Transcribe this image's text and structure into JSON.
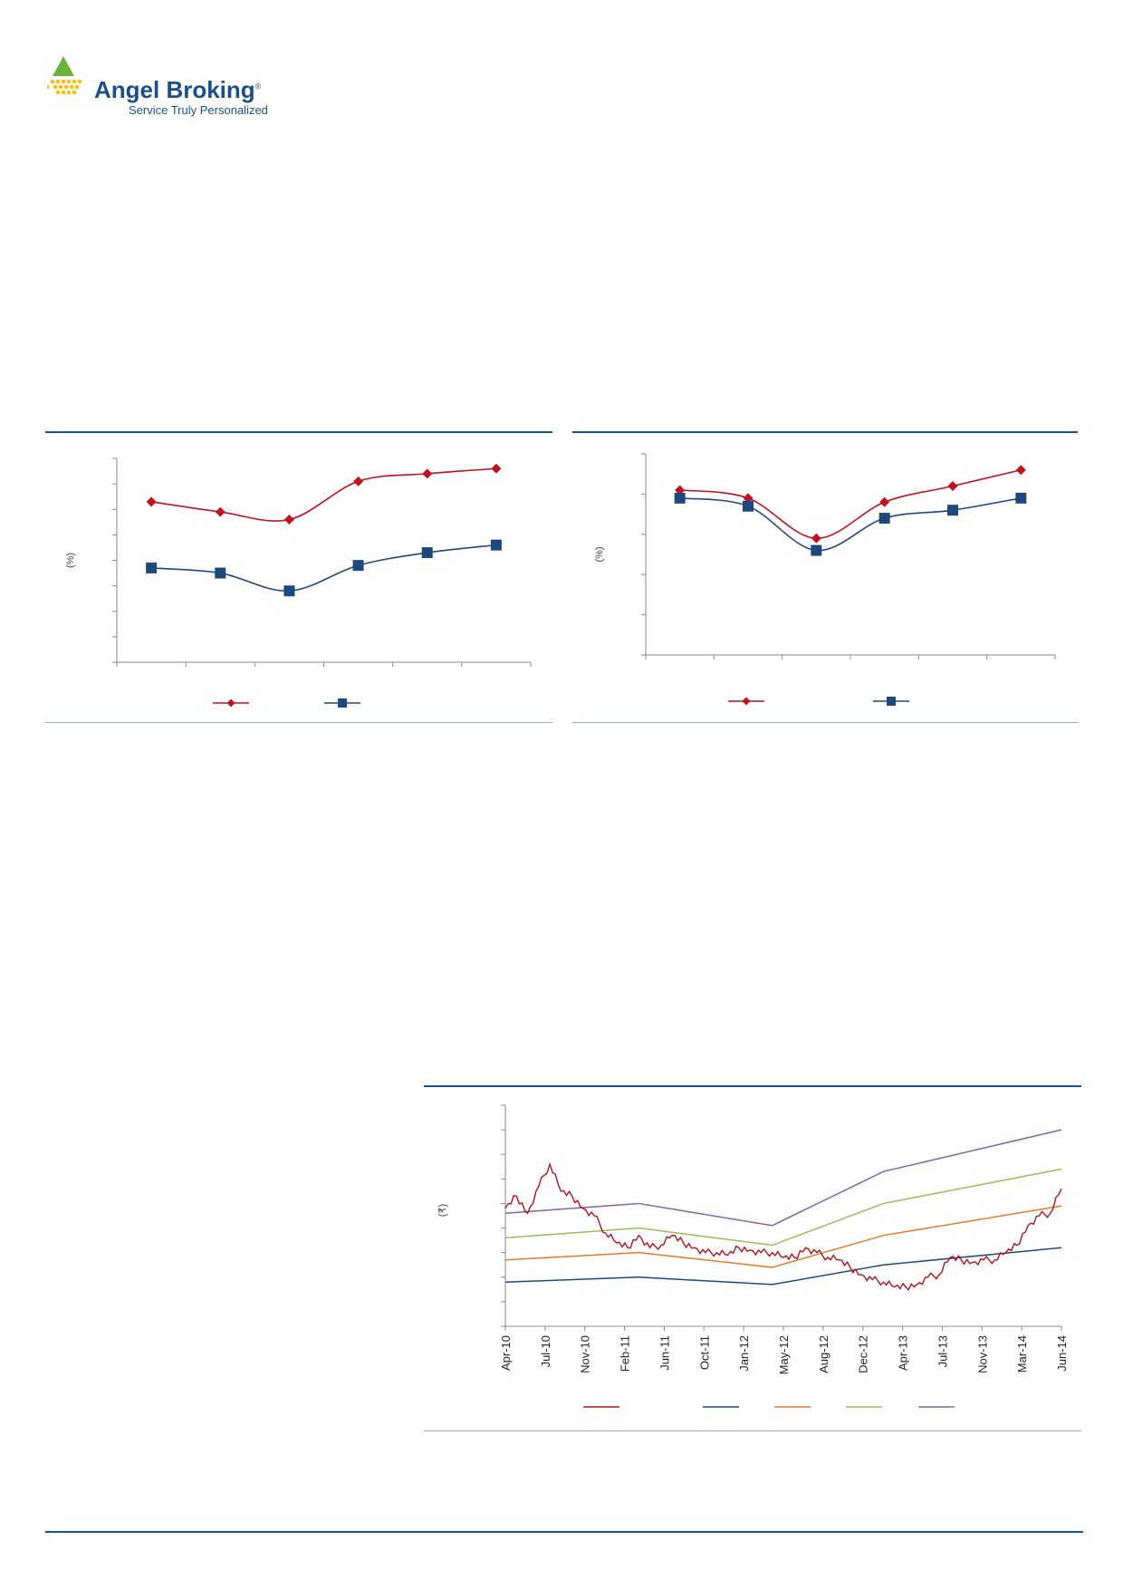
{
  "header": {
    "brand": "Angel Broking",
    "tagline": "Service Truly Personalized",
    "registered_mark": "®",
    "colors": {
      "brand_blue": "#1b4f8a",
      "logo_green": "#6cb33e",
      "logo_yellow": "#f4c21f"
    }
  },
  "chart_data": [
    {
      "type": "line",
      "ylabel": "(%)",
      "x": [
        1,
        2,
        3,
        4,
        5,
        6
      ],
      "series": [
        {
          "values": [
            6.3,
            5.9,
            5.6,
            7.1,
            7.4,
            7.6
          ],
          "color": "#c0121e",
          "marker": "diamond"
        },
        {
          "values": [
            3.7,
            3.5,
            2.8,
            3.8,
            4.3,
            4.6
          ],
          "color": "#1f497d",
          "marker": "square"
        }
      ],
      "ylim": [
        0,
        8
      ],
      "grid": false,
      "legend": "bottom-center"
    },
    {
      "type": "line",
      "ylabel": "(%)",
      "x": [
        1,
        2,
        3,
        4,
        5,
        6
      ],
      "series": [
        {
          "values": [
            4.1,
            3.9,
            2.9,
            3.8,
            4.2,
            4.6
          ],
          "color": "#c0121e",
          "marker": "diamond"
        },
        {
          "values": [
            3.9,
            3.7,
            2.6,
            3.4,
            3.6,
            3.9
          ],
          "color": "#1f497d",
          "marker": "square"
        }
      ],
      "ylim": [
        0,
        5
      ],
      "grid": false,
      "legend": "bottom-center"
    },
    {
      "type": "line",
      "ylabel": "(₹)",
      "x_ticks": [
        "Apr-10",
        "Jul-10",
        "Nov-10",
        "Feb-11",
        "Jun-11",
        "Oct-11",
        "Jan-12",
        "May-12",
        "Aug-12",
        "Dec-12",
        "Apr-13",
        "Jul-13",
        "Nov-13",
        "Mar-14",
        "Jun-14"
      ],
      "xlim": [
        0,
        50
      ],
      "ylim": [
        0,
        9
      ],
      "price_series": {
        "color": "#b0131c",
        "points": [
          [
            0,
            4.8
          ],
          [
            1,
            5.3
          ],
          [
            2,
            4.6
          ],
          [
            3,
            5.7
          ],
          [
            4,
            6.6
          ],
          [
            5,
            5.5
          ],
          [
            6,
            5.3
          ],
          [
            7,
            4.8
          ],
          [
            8,
            4.5
          ],
          [
            9,
            3.8
          ],
          [
            10,
            3.4
          ],
          [
            11,
            3.2
          ],
          [
            12,
            3.7
          ],
          [
            13,
            3.2
          ],
          [
            14,
            3.3
          ],
          [
            15,
            3.7
          ],
          [
            16,
            3.4
          ],
          [
            17,
            3.2
          ],
          [
            18,
            3.0
          ],
          [
            19,
            3.0
          ],
          [
            20,
            2.9
          ],
          [
            21,
            3.2
          ],
          [
            22,
            3.1
          ],
          [
            23,
            3.0
          ],
          [
            24,
            3.0
          ],
          [
            25,
            2.8
          ],
          [
            26,
            2.8
          ],
          [
            27,
            3.2
          ],
          [
            28,
            3.0
          ],
          [
            29,
            2.8
          ],
          [
            30,
            2.7
          ],
          [
            31,
            2.4
          ],
          [
            32,
            2.1
          ],
          [
            33,
            1.9
          ],
          [
            34,
            1.8
          ],
          [
            35,
            1.6
          ],
          [
            36,
            1.6
          ],
          [
            37,
            1.7
          ],
          [
            38,
            2.0
          ],
          [
            39,
            2.1
          ],
          [
            40,
            2.8
          ],
          [
            41,
            2.7
          ],
          [
            42,
            2.6
          ],
          [
            43,
            2.7
          ],
          [
            44,
            2.7
          ],
          [
            45,
            3.0
          ],
          [
            46,
            3.3
          ],
          [
            47,
            4.1
          ],
          [
            48,
            4.5
          ],
          [
            49,
            4.6
          ],
          [
            50,
            5.6
          ]
        ]
      },
      "band_series": [
        {
          "color": "#1f497d",
          "points": [
            [
              0,
              1.8
            ],
            [
              12,
              2.0
            ],
            [
              24,
              1.7
            ],
            [
              34,
              2.5
            ],
            [
              50,
              3.2
            ]
          ]
        },
        {
          "color": "#e07b2a",
          "points": [
            [
              0,
              2.7
            ],
            [
              12,
              3.0
            ],
            [
              24,
              2.4
            ],
            [
              34,
              3.7
            ],
            [
              50,
              4.9
            ]
          ]
        },
        {
          "color": "#9bbb59",
          "points": [
            [
              0,
              3.6
            ],
            [
              12,
              4.0
            ],
            [
              24,
              3.3
            ],
            [
              34,
              5.0
            ],
            [
              50,
              6.4
            ]
          ]
        },
        {
          "color": "#8064a2",
          "points": [
            [
              0,
              4.6
            ],
            [
              12,
              5.0
            ],
            [
              24,
              4.1
            ],
            [
              34,
              6.3
            ],
            [
              50,
              8.0
            ]
          ]
        }
      ],
      "grid": false,
      "legend": "bottom-center"
    }
  ]
}
